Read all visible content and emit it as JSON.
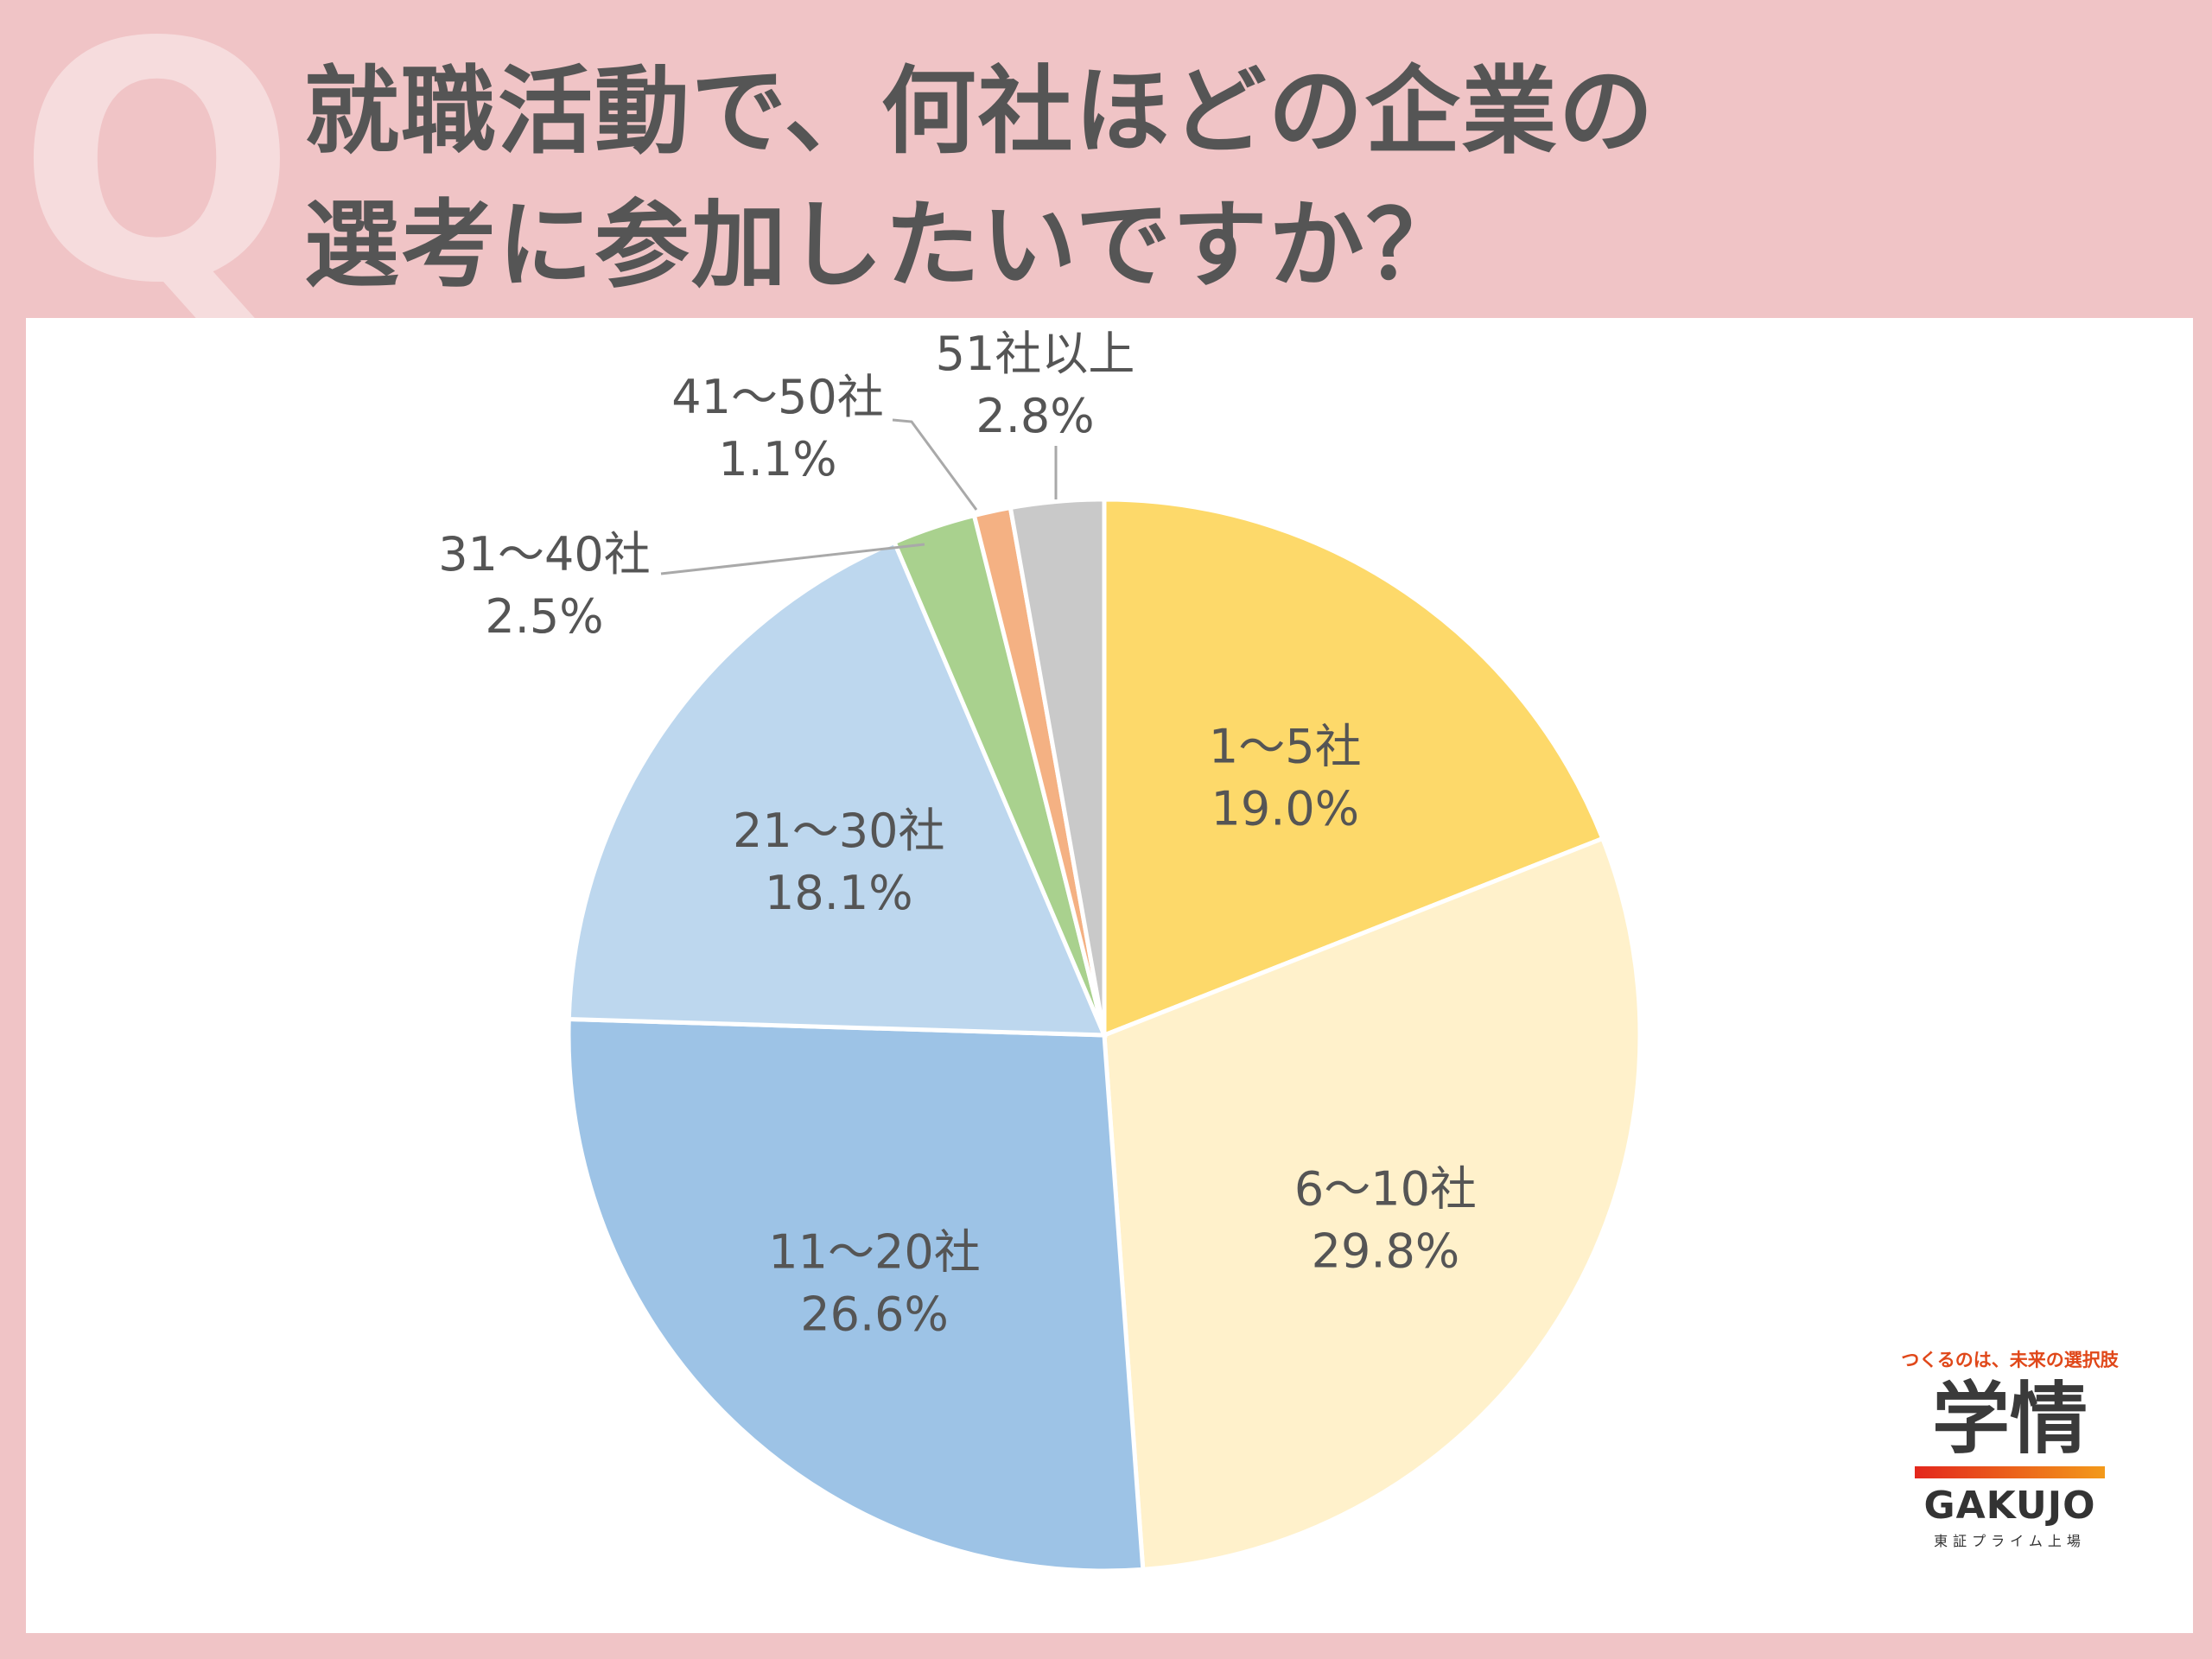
{
  "header": {
    "q_mark": "Q",
    "title_line1": "就職活動で、何社ほどの企業の",
    "title_line2": "選考に参加したいですか？"
  },
  "chart_data": {
    "type": "pie",
    "title": "就職活動で、何社ほどの企業の選考に参加したいですか？",
    "slices": [
      {
        "label": "1～5社",
        "value": 19.0,
        "display": "19.0%",
        "color": "#fdd96a"
      },
      {
        "label": "6～10社",
        "value": 29.8,
        "display": "29.8%",
        "color": "#fff1cb"
      },
      {
        "label": "11～20社",
        "value": 26.6,
        "display": "26.6%",
        "color": "#9dc3e6"
      },
      {
        "label": "21～30社",
        "value": 18.1,
        "display": "18.1%",
        "color": "#bdd7ee"
      },
      {
        "label": "31～40社",
        "value": 2.5,
        "display": "2.5%",
        "color": "#a9d18e"
      },
      {
        "label": "41～50社",
        "value": 1.1,
        "display": "1.1%",
        "color": "#f4b183"
      },
      {
        "label": "51社以上",
        "value": 2.8,
        "display": "2.8%",
        "color": "#c9c9c9"
      }
    ],
    "start": "12 o'clock, clockwise"
  },
  "logo": {
    "tagline": "つくるのは、未来の選択肢",
    "mark": "学情",
    "brand": "GAKUJO",
    "listing": "東証プライム上場"
  }
}
